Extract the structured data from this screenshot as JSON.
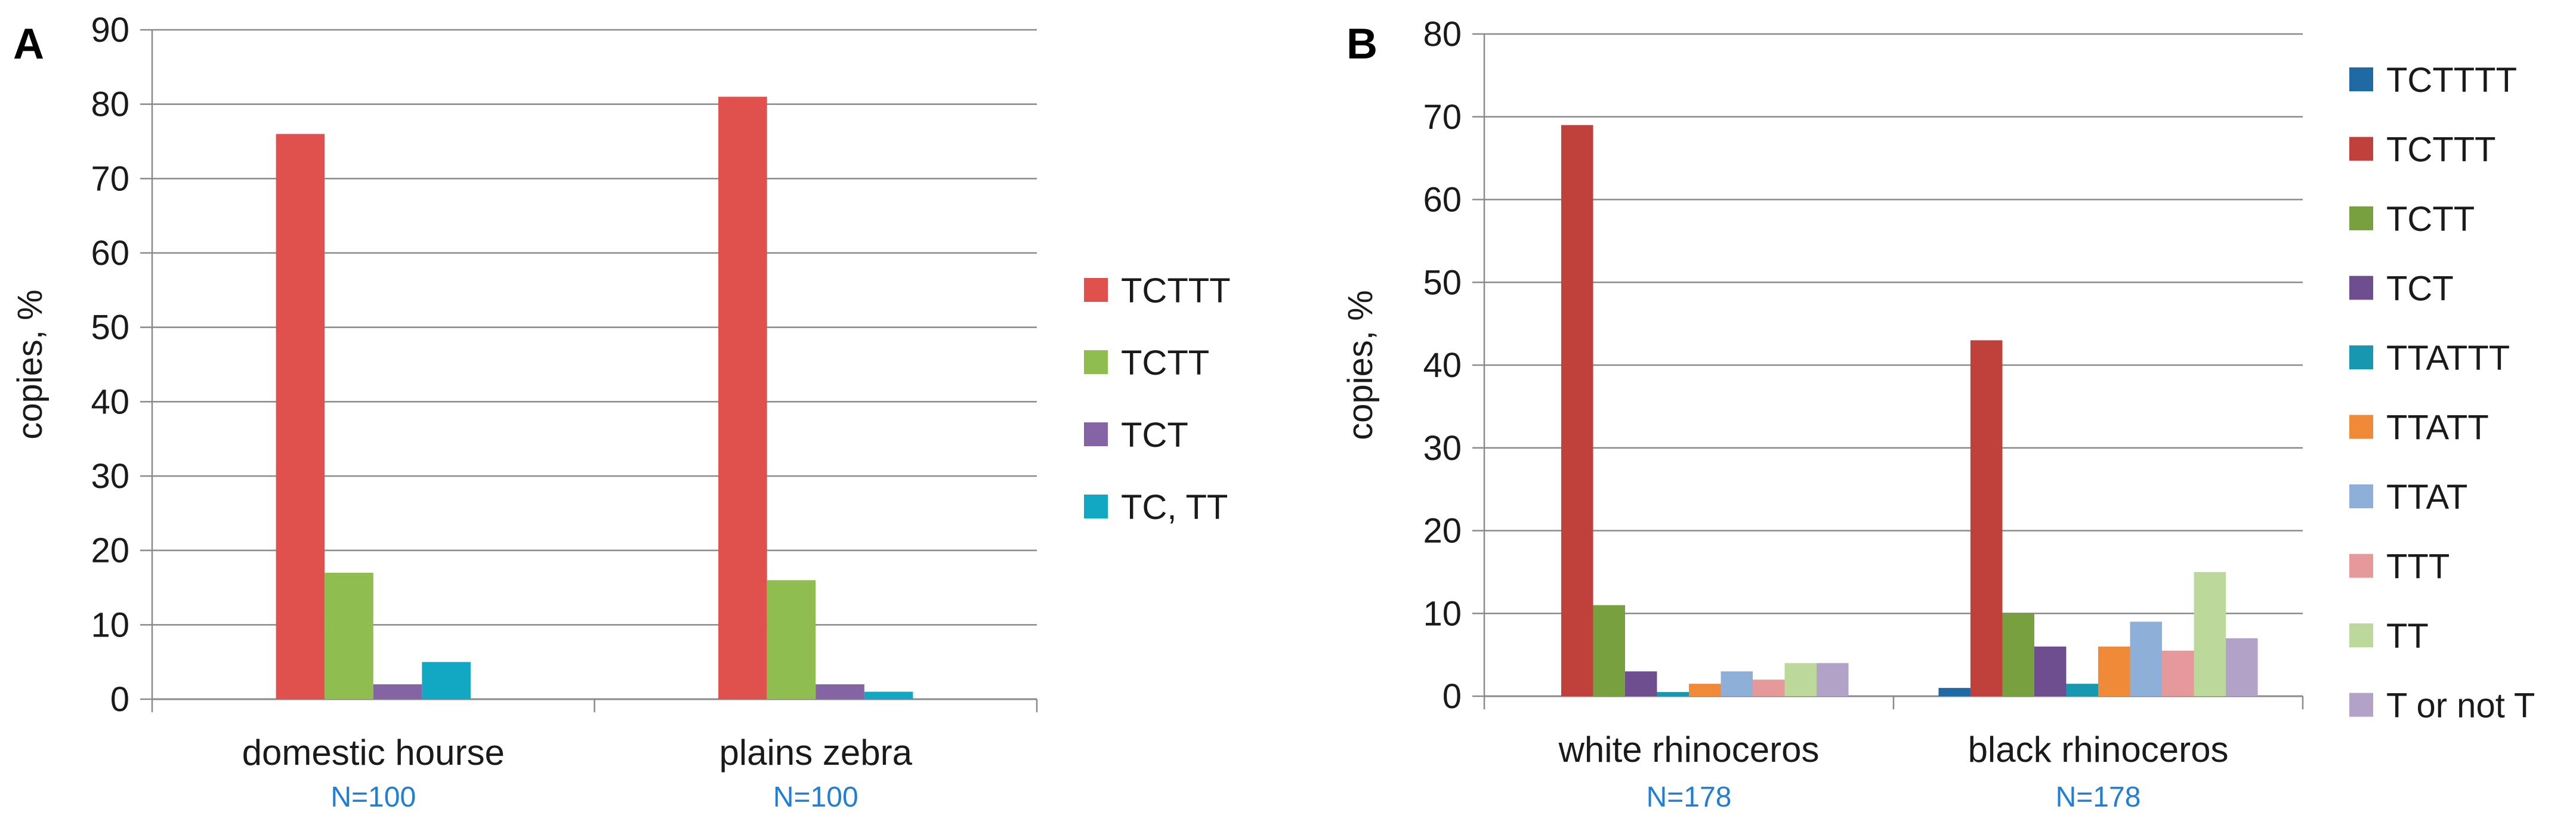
{
  "chart_data": [
    {
      "panel_label": "A",
      "type": "bar",
      "ylabel": "copies, %",
      "ylim": [
        0,
        90
      ],
      "ytick_step": 10,
      "grid": true,
      "legend_position": "right",
      "categories": [
        "domestic hourse",
        "plains zebra"
      ],
      "sample_sizes": [
        "N=100",
        "N=100"
      ],
      "series": [
        {
          "name": "TCTTT",
          "color": "#e0504c",
          "values": [
            76,
            81
          ]
        },
        {
          "name": "TCTT",
          "color": "#8fbd50",
          "values": [
            17,
            16
          ]
        },
        {
          "name": "TCT",
          "color": "#8464a4",
          "values": [
            2,
            2
          ]
        },
        {
          "name": "TC, TT",
          "color": "#12a8c4",
          "values": [
            5,
            1
          ]
        }
      ]
    },
    {
      "panel_label": "B",
      "type": "bar",
      "ylabel": "copies, %",
      "ylim": [
        0,
        80
      ],
      "ytick_step": 10,
      "grid": true,
      "legend_position": "right",
      "categories": [
        "white rhinoceros",
        "black rhinoceros"
      ],
      "sample_sizes": [
        "N=178",
        "N=178"
      ],
      "series": [
        {
          "name": "TCTTTT",
          "color": "#1f6aa5",
          "values": [
            0,
            1
          ]
        },
        {
          "name": "TCTTT",
          "color": "#c0403c",
          "values": [
            69,
            43
          ]
        },
        {
          "name": "TCTT",
          "color": "#78a03e",
          "values": [
            11,
            10
          ]
        },
        {
          "name": "TCT",
          "color": "#6e4e8e",
          "values": [
            3,
            6
          ]
        },
        {
          "name": "TTATTT",
          "color": "#1898b0",
          "values": [
            0.5,
            1.5
          ]
        },
        {
          "name": "TTATT",
          "color": "#f08a38",
          "values": [
            1.5,
            6
          ]
        },
        {
          "name": "TTAT",
          "color": "#8eb0d8",
          "values": [
            3,
            9
          ]
        },
        {
          "name": "TTT",
          "color": "#e6999a",
          "values": [
            2,
            5.5
          ]
        },
        {
          "name": "TT",
          "color": "#bcd89a",
          "values": [
            4,
            15
          ]
        },
        {
          "name": "T or not T",
          "color": "#b2a2c8",
          "values": [
            4,
            7
          ]
        }
      ]
    }
  ]
}
